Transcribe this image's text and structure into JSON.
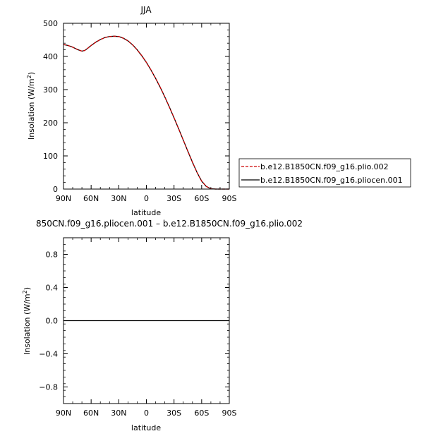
{
  "chart_data": [
    {
      "type": "line",
      "title": "JJA",
      "xlabel": "latitude",
      "ylabel": "Insolation (W/m²)",
      "ylabel_parts": {
        "main": "Insolation (W/m",
        "sup": "2",
        "close": ")"
      },
      "xlim": [
        90,
        -90
      ],
      "ylim": [
        0,
        500
      ],
      "x_ticks": [
        90,
        60,
        30,
        0,
        -30,
        -60,
        -90
      ],
      "x_tick_labels": [
        "90N",
        "60N",
        "30N",
        "0",
        "30S",
        "60S",
        "90S"
      ],
      "y_ticks": [
        0,
        100,
        200,
        300,
        400,
        500
      ],
      "y_tick_labels": [
        "0",
        "100",
        "200",
        "300",
        "400",
        "500"
      ],
      "legend": {
        "placement": "right",
        "entries": [
          {
            "label": "b.e12.B1850CN.f09_g16.plio.002",
            "color": "#cc0000",
            "dash": "dashed"
          },
          {
            "label": "b.e12.B1850CN.f09_g16.pliocen.001",
            "color": "#000000",
            "dash": "solid"
          }
        ]
      },
      "x": [
        90,
        85,
        80,
        75,
        70,
        67,
        64,
        60,
        55,
        50,
        45,
        40,
        35,
        30,
        25,
        20,
        15,
        10,
        5,
        0,
        -5,
        -10,
        -15,
        -20,
        -25,
        -30,
        -35,
        -40,
        -45,
        -50,
        -55,
        -60,
        -65,
        -70,
        -75,
        -80,
        -85,
        -90
      ],
      "series": [
        {
          "name": "b.e12.B1850CN.f09_g16.plio.002",
          "color": "#cc0000",
          "values": [
            436,
            433,
            428,
            421,
            416,
            418,
            424,
            433,
            443,
            451,
            457,
            460,
            461,
            460,
            455,
            447,
            435,
            420,
            402,
            382,
            359,
            334,
            307,
            278,
            247,
            215,
            182,
            148,
            114,
            81,
            50,
            24,
            8,
            1,
            0,
            0,
            0,
            0
          ]
        },
        {
          "name": "b.e12.B1850CN.f09_g16.pliocen.001",
          "color": "#000000",
          "values": [
            436,
            433,
            428,
            421,
            416,
            418,
            424,
            433,
            443,
            451,
            457,
            460,
            461,
            460,
            455,
            447,
            435,
            420,
            402,
            382,
            359,
            334,
            307,
            278,
            247,
            215,
            182,
            148,
            114,
            81,
            50,
            24,
            8,
            1,
            0,
            0,
            0,
            0
          ]
        }
      ]
    },
    {
      "type": "line",
      "title": "850CN.f09_g16.pliocen.001 – b.e12.B1850CN.f09_g16.plio.002",
      "xlabel": "latitude",
      "ylabel": "Insolation (W/m²)",
      "ylabel_parts": {
        "main": "Insolation (W/m",
        "sup": "2",
        "close": ")"
      },
      "xlim": [
        90,
        -90
      ],
      "ylim": [
        -1,
        1
      ],
      "x_ticks": [
        90,
        60,
        30,
        0,
        -30,
        -60,
        -90
      ],
      "x_tick_labels": [
        "90N",
        "60N",
        "30N",
        "0",
        "30S",
        "60S",
        "90S"
      ],
      "y_ticks": [
        -0.8,
        -0.4,
        0,
        0.4,
        0.8
      ],
      "y_tick_labels": [
        "−0.8",
        "−0.4",
        "0.0",
        "0.4",
        "0.8"
      ],
      "x": [
        90,
        -90
      ],
      "series": [
        {
          "color": "#000000",
          "values": [
            0,
            0
          ]
        }
      ]
    }
  ]
}
